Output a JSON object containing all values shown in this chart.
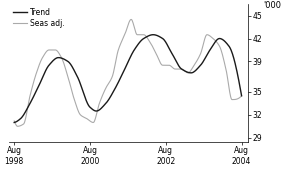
{
  "ylabel": "'000",
  "ylim": [
    28.5,
    46.5
  ],
  "ytick_vals": [
    29,
    32,
    35,
    39,
    42,
    45
  ],
  "xtick_positions": [
    1998.583,
    2000.583,
    2002.583,
    2004.583
  ],
  "xtick_labels": [
    "Aug\n1998",
    "Aug\n2000",
    "Aug\n2002",
    "Aug\n2004"
  ],
  "trend_color": "#1a1a1a",
  "seas_color": "#aaaaaa",
  "legend_labels": [
    "Trend",
    "Seas adj."
  ],
  "background_color": "#ffffff",
  "trend_linewidth": 1.0,
  "seas_linewidth": 0.8,
  "trend_knots_t": [
    1998.583,
    1998.75,
    1999.0,
    1999.25,
    1999.5,
    1999.75,
    2000.0,
    2000.25,
    2000.583,
    2000.75,
    2001.0,
    2001.25,
    2001.5,
    2001.75,
    2002.0,
    2002.25,
    2002.5,
    2002.75,
    2003.0,
    2003.25,
    2003.5,
    2003.75,
    2004.0,
    2004.25,
    2004.583
  ],
  "trend_knots_v": [
    31.0,
    31.5,
    33.5,
    36.0,
    38.5,
    39.5,
    39.0,
    37.0,
    33.0,
    32.5,
    33.5,
    35.5,
    38.0,
    40.5,
    42.0,
    42.5,
    42.0,
    40.0,
    38.0,
    37.5,
    38.5,
    40.5,
    42.0,
    41.0,
    34.5
  ],
  "seas_extra_t": [
    1998.583,
    1998.67,
    1998.83,
    1999.0,
    1999.17,
    1999.33,
    1999.5,
    1999.67,
    1999.83,
    2000.0,
    2000.17,
    2000.33,
    2000.5,
    2000.67,
    2000.83,
    2001.0,
    2001.17,
    2001.33,
    2001.5,
    2001.67,
    2001.83,
    2002.0,
    2002.17,
    2002.33,
    2002.5,
    2002.67,
    2002.83,
    2003.0,
    2003.17,
    2003.33,
    2003.5,
    2003.67,
    2003.83,
    2004.0,
    2004.17,
    2004.33,
    2004.583
  ],
  "seas_extra_v": [
    31.2,
    30.5,
    30.8,
    34.5,
    37.5,
    39.5,
    40.5,
    40.5,
    39.5,
    37.0,
    34.0,
    32.0,
    31.5,
    31.0,
    33.5,
    35.5,
    37.0,
    40.5,
    42.5,
    44.5,
    42.5,
    42.5,
    41.5,
    40.0,
    38.5,
    38.5,
    38.0,
    38.0,
    37.5,
    38.5,
    40.0,
    42.5,
    42.0,
    41.0,
    38.0,
    34.0,
    34.5
  ]
}
